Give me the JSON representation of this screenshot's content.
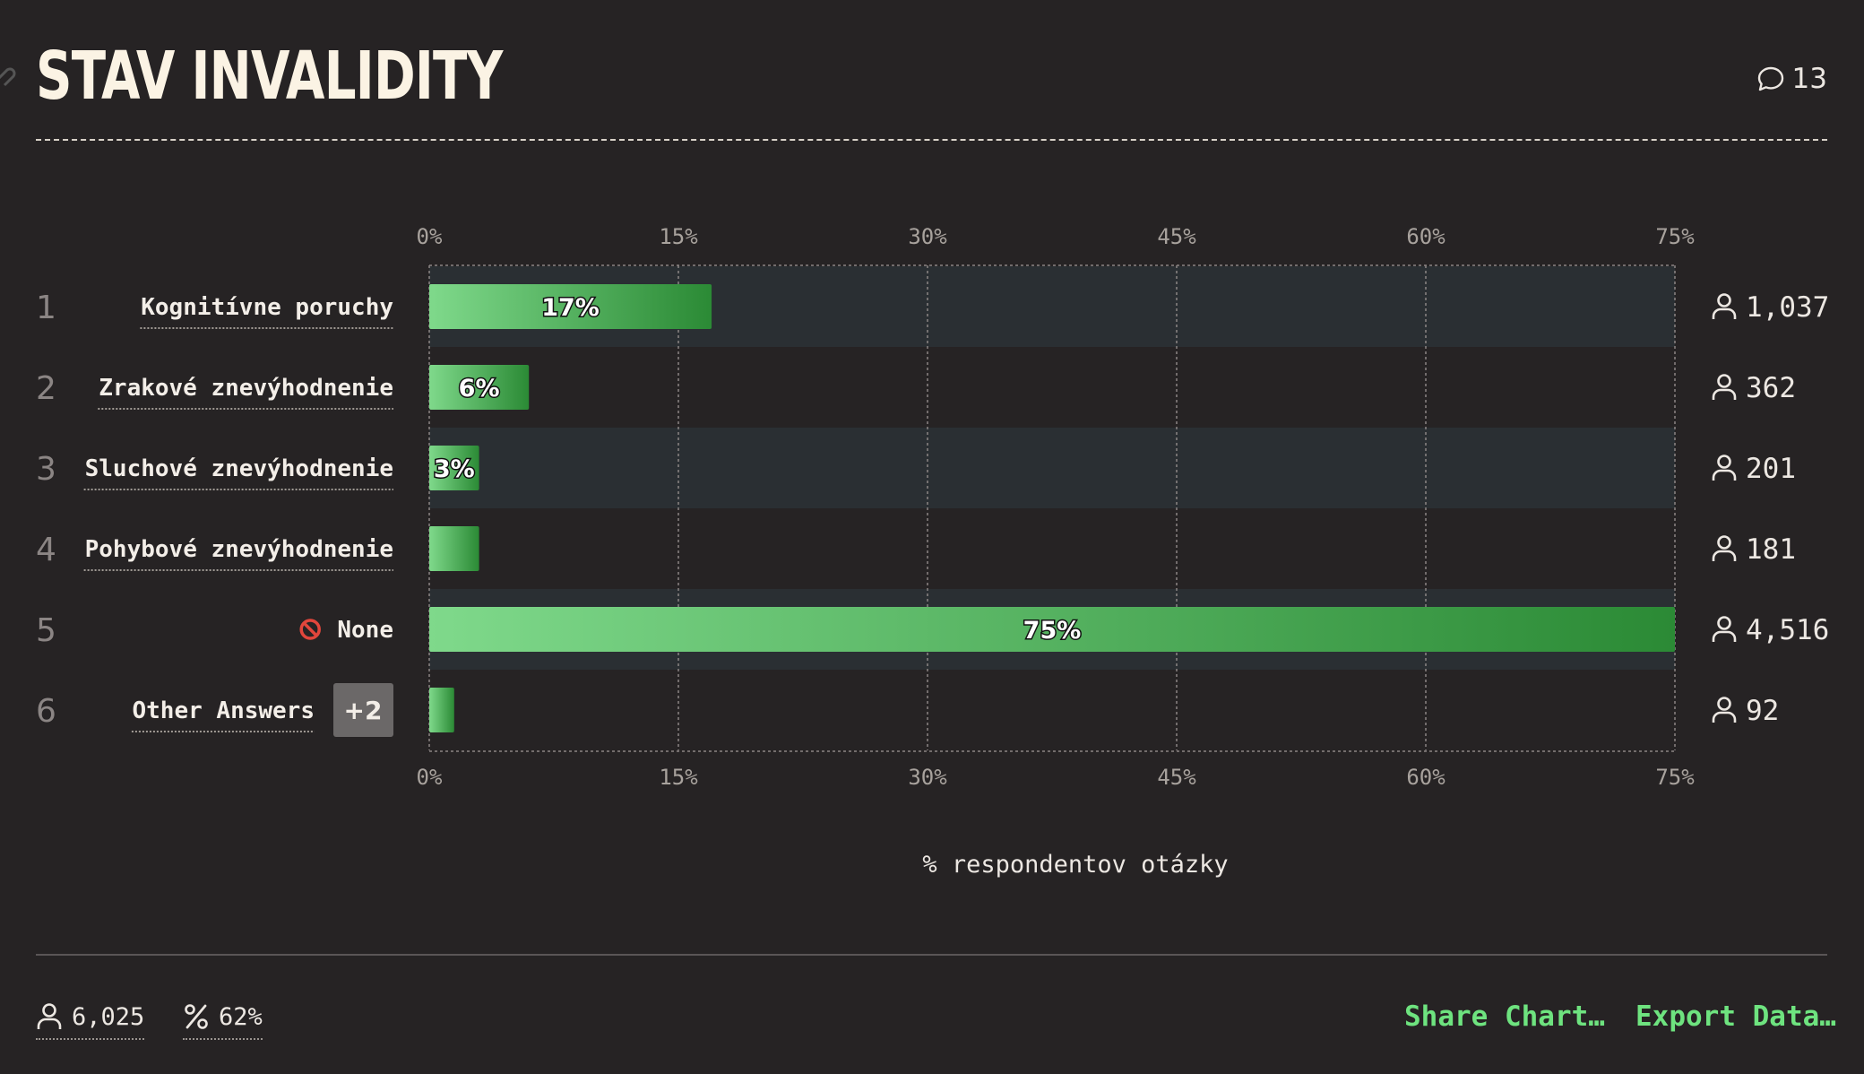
{
  "header": {
    "title": "STAV INVALIDITY",
    "comment_count": "13"
  },
  "chart_data": {
    "type": "bar",
    "orientation": "horizontal",
    "categories": [
      "Kognitívne poruchy",
      "Zrakové znevýhodnenie",
      "Sluchové znevýhodnenie",
      "Pohybové znevýhodnenie",
      "None",
      "Other Answers"
    ],
    "ranks": [
      "1",
      "2",
      "3",
      "4",
      "5",
      "6"
    ],
    "values": [
      17,
      6,
      3,
      3,
      75,
      1.5
    ],
    "bar_labels": [
      "17%",
      "6%",
      "3%",
      "",
      "75%",
      ""
    ],
    "counts": [
      "1,037",
      "362",
      "201",
      "181",
      "4,516",
      "92"
    ],
    "highlighted_rows": [
      0,
      2,
      4
    ],
    "other_answers_badge": "+2",
    "none_icon": "prohibited-icon",
    "xlim": [
      0,
      75
    ],
    "x_ticks": [
      "0%",
      "15%",
      "30%",
      "45%",
      "60%",
      "75%"
    ],
    "x_tick_values": [
      0,
      15,
      30,
      45,
      60,
      75
    ],
    "xlabel": "% respondentov otázky",
    "grid": true,
    "bar_gradient": [
      "#7fd98b",
      "#2b8a35"
    ]
  },
  "footer": {
    "respondents": "6,025",
    "percent": "62%",
    "share_label": "Share Chart…",
    "export_label": "Export Data…"
  },
  "colors": {
    "background": "#262324",
    "highlight_row": "#2a2f33",
    "accent": "#6ee37f",
    "title": "#fbf3e4"
  }
}
